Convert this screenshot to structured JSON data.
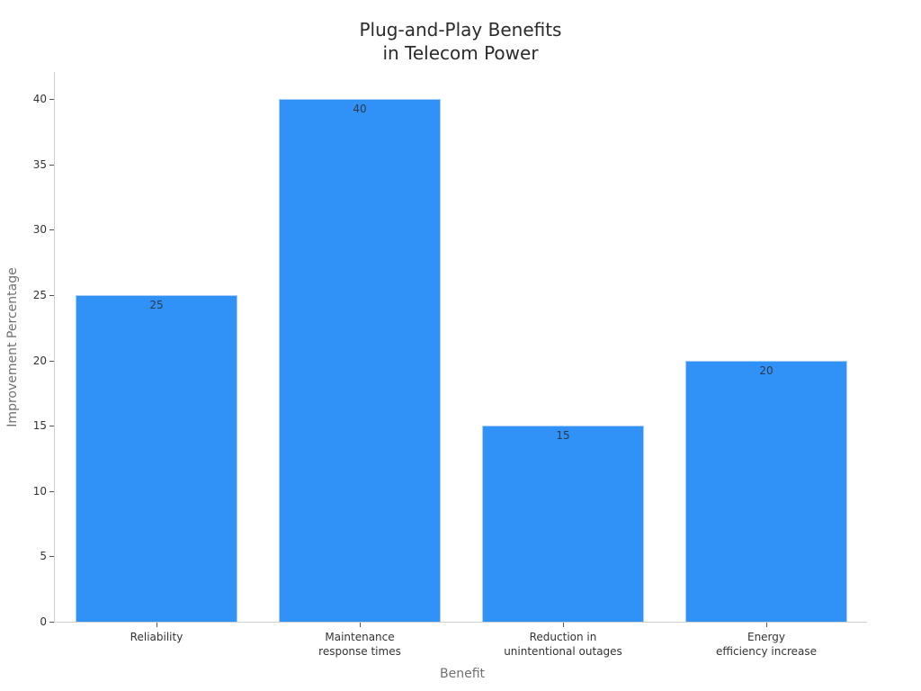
{
  "chart_data": {
    "type": "bar",
    "title": "Plug-and-Play Benefits\nin Telecom Power",
    "title_lines": [
      "Plug-and-Play Benefits",
      "in Telecom Power"
    ],
    "xlabel": "Benefit",
    "ylabel": "Improvement Percentage",
    "categories": [
      "Reliability",
      "Maintenance\nresponse times",
      "Reduction in\nunintentional outages",
      "Energy\nefficiency increase"
    ],
    "values": [
      25,
      40,
      15,
      20
    ],
    "data_labels": [
      "25",
      "40",
      "15",
      "20"
    ],
    "ylim": [
      0,
      42
    ],
    "yticks": [
      0,
      5,
      10,
      15,
      20,
      25,
      30,
      35,
      40
    ],
    "ytick_labels": [
      "0",
      "5",
      "10",
      "15",
      "20",
      "25",
      "30",
      "35",
      "40"
    ],
    "grid": false,
    "legend": null,
    "bar_color": "#3092f7"
  }
}
